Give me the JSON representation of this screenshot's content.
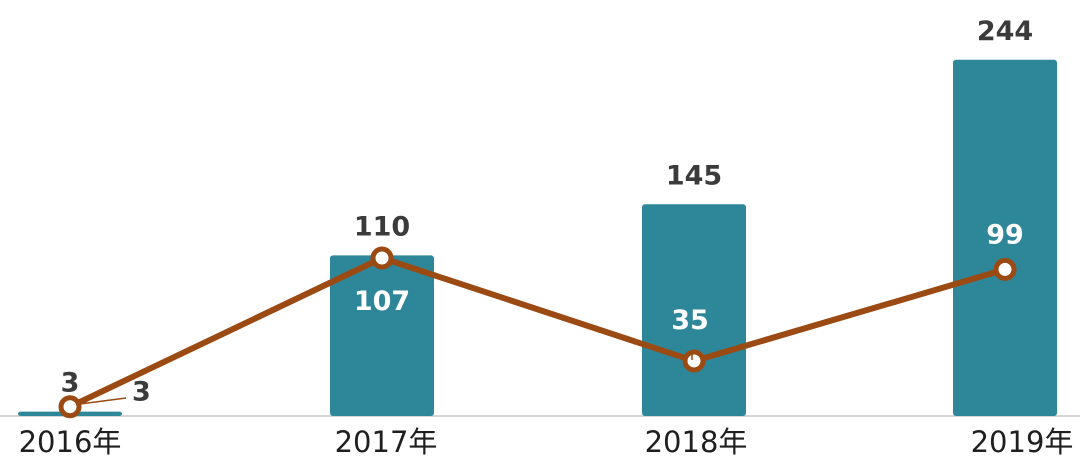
{
  "chart_data": {
    "type": "bar",
    "categories": [
      "2016年",
      "2017年",
      "2018年",
      "2019年"
    ],
    "series": [
      {
        "type": "bar",
        "values": [
          3,
          110,
          145,
          244
        ],
        "color": "#2e8799"
      },
      {
        "type": "line",
        "values": [
          3,
          107,
          35,
          99
        ],
        "color": "#9a4a12"
      }
    ],
    "ylim": [
      0,
      260
    ],
    "grid": false,
    "legend": "none"
  }
}
